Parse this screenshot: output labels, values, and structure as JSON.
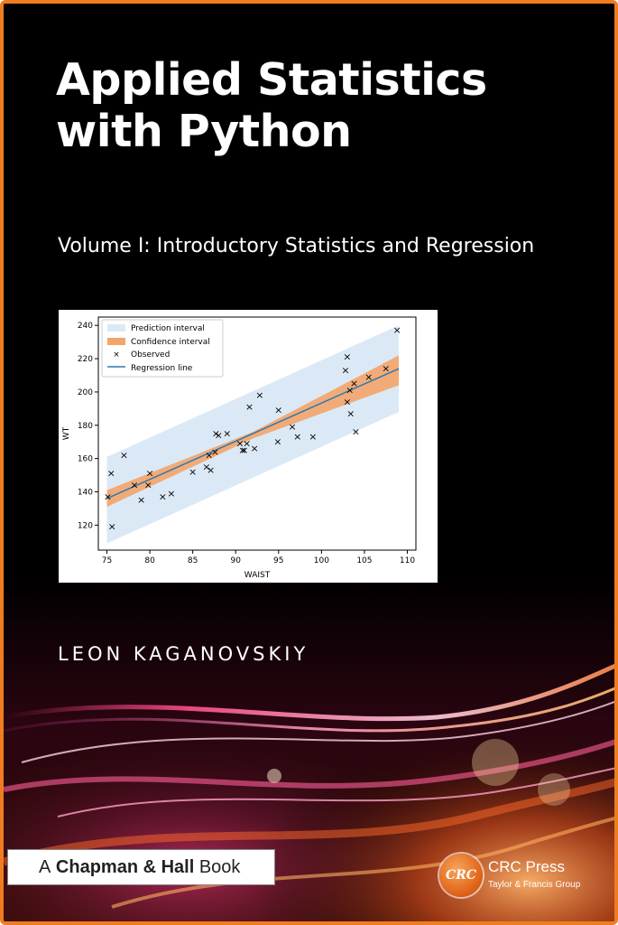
{
  "cover": {
    "title_line1": "Applied Statistics",
    "title_line2": "with Python",
    "subtitle": "Volume I: Introductory Statistics and Regression",
    "author": "LEON KAGANOVSKIY",
    "series_prefix": "A",
    "series_name": "Chapman & Hall",
    "series_suffix": "Book",
    "publisher_logo_text": "CRC",
    "publisher_name": "CRC Press",
    "publisher_group": "Taylor & Francis Group",
    "colors": {
      "border": "#ef7d1f",
      "background": "#000000",
      "prediction_band": "#dbe9f6",
      "confidence_band": "#f4a46a",
      "regression_line": "#2a7ab0"
    }
  },
  "chart_data": {
    "type": "scatter",
    "xlabel": "WAIST",
    "ylabel": "WT",
    "xlim": [
      74,
      111
    ],
    "ylim": [
      105,
      245
    ],
    "xticks": [
      75,
      80,
      85,
      90,
      95,
      100,
      105,
      110
    ],
    "yticks": [
      120,
      140,
      160,
      180,
      200,
      220,
      240
    ],
    "legend": {
      "placement": "top-left",
      "entries": [
        "Prediction interval",
        "Confidence interval",
        "Observed",
        "Regression line"
      ]
    },
    "regression_line": {
      "x": [
        75,
        109
      ],
      "y": [
        136,
        214
      ]
    },
    "confidence_interval": {
      "x": [
        75,
        92,
        109
      ],
      "lower": [
        131,
        172,
        204
      ],
      "upper": [
        141,
        176,
        222
      ]
    },
    "prediction_interval": {
      "x": [
        75,
        109
      ],
      "lower": [
        109,
        188
      ],
      "upper": [
        161,
        240
      ]
    },
    "observed": [
      [
        75.1,
        137
      ],
      [
        75.5,
        151
      ],
      [
        75.6,
        119
      ],
      [
        77.0,
        162
      ],
      [
        78.2,
        144
      ],
      [
        79.0,
        135
      ],
      [
        79.8,
        144
      ],
      [
        80.0,
        151
      ],
      [
        81.5,
        137
      ],
      [
        82.5,
        139
      ],
      [
        85.0,
        152
      ],
      [
        86.6,
        155
      ],
      [
        86.9,
        162
      ],
      [
        87.1,
        153
      ],
      [
        87.6,
        164
      ],
      [
        87.7,
        175
      ],
      [
        88.0,
        174
      ],
      [
        89.0,
        175
      ],
      [
        90.5,
        169
      ],
      [
        90.8,
        165
      ],
      [
        91.0,
        165
      ],
      [
        91.3,
        169
      ],
      [
        91.6,
        191
      ],
      [
        92.2,
        166
      ],
      [
        92.8,
        198
      ],
      [
        94.9,
        170
      ],
      [
        95.0,
        189
      ],
      [
        96.6,
        179
      ],
      [
        97.2,
        173
      ],
      [
        99.0,
        173
      ],
      [
        102.8,
        213
      ],
      [
        103.0,
        221
      ],
      [
        103.0,
        194
      ],
      [
        103.3,
        201
      ],
      [
        103.4,
        187
      ],
      [
        103.8,
        205
      ],
      [
        104.0,
        176
      ],
      [
        105.5,
        209
      ],
      [
        107.5,
        214
      ],
      [
        108.8,
        237
      ]
    ]
  }
}
